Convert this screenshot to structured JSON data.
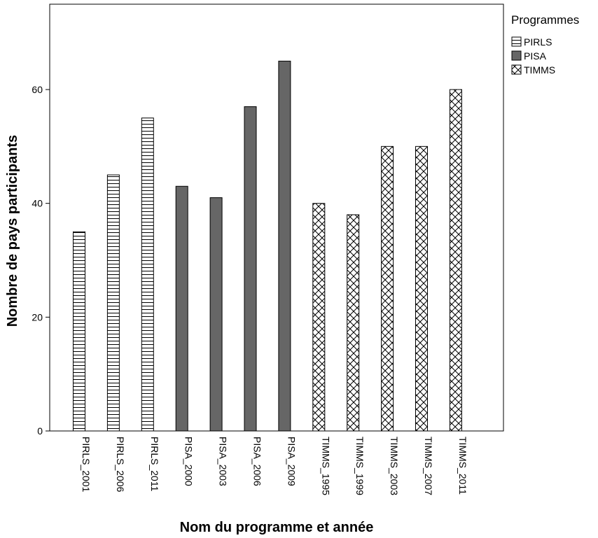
{
  "chart_data": {
    "type": "bar",
    "title": "",
    "xlabel": "Nom du programme et année",
    "ylabel": "Nombre de pays participants",
    "ylim": [
      0,
      75
    ],
    "yticks": [
      0,
      20,
      40,
      60
    ],
    "grid": false,
    "legend": {
      "title": "Programmes",
      "placement": "top-right",
      "entries": [
        {
          "name": "PIRLS",
          "pattern": "horizontal-lines"
        },
        {
          "name": "PISA",
          "pattern": "solid",
          "color": "#666666"
        },
        {
          "name": "TIMMS",
          "pattern": "crosshatch"
        }
      ]
    },
    "categories": [
      "PIRLS_2001",
      "PIRLS_2006",
      "PIRLS_2011",
      "PISA_2000",
      "PISA_2003",
      "PISA_2006",
      "PISA_2009",
      "TIMMS_1995",
      "TIMMS_1999",
      "TIMMS_2003",
      "TIMMS_2007",
      "TIMMS_2011"
    ],
    "series": [
      {
        "name": "PIRLS",
        "values": [
          35,
          45,
          55,
          null,
          null,
          null,
          null,
          null,
          null,
          null,
          null,
          null
        ]
      },
      {
        "name": "PISA",
        "values": [
          null,
          null,
          null,
          43,
          41,
          57,
          65,
          null,
          null,
          null,
          null,
          null
        ]
      },
      {
        "name": "TIMMS",
        "values": [
          null,
          null,
          null,
          null,
          null,
          null,
          null,
          40,
          38,
          50,
          50,
          60
        ]
      }
    ]
  }
}
